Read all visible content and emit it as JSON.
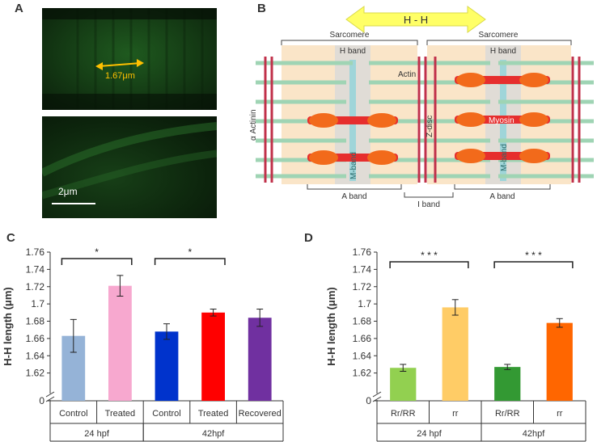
{
  "panels": {
    "a": {
      "letter": "A",
      "measure_label": "1.67μm",
      "scale_label": "2μm"
    },
    "b": {
      "letter": "B",
      "hh_label": "H - H",
      "sarcomere_left": "Sarcomere",
      "sarcomere_right": "Sarcomere",
      "h_band_left": "H band",
      "h_band_right": "H band",
      "actin": "Actin",
      "myosin": "Myosin",
      "alpha_actinin": "α Actinin",
      "z_disc": "Z-disc",
      "m_band_left": "M-band",
      "m_band_right": "M-band",
      "a_band_left": "A band",
      "a_band_right": "A band",
      "i_band": "I band"
    }
  },
  "colors": {
    "bar_c": [
      "#95b3d7",
      "#f7a8cf",
      "#0033cc",
      "#ff0000",
      "#7030a0"
    ],
    "bar_d": [
      "#92d050",
      "#ffcc66",
      "#339933",
      "#ff6600"
    ],
    "hh_arrow": "#ffff66",
    "measure_arrow": "#ffc000"
  },
  "chart_data": [
    {
      "panel": "C",
      "type": "bar",
      "ylabel": "H-H length (μm)",
      "ylim": [
        1.6,
        1.76
      ],
      "yticks": [
        "0",
        "1.62",
        "1.64",
        "1.66",
        "1.68",
        "1.7",
        "1.72",
        "1.74",
        "1.76"
      ],
      "axis_break": true,
      "categories": [
        "Control",
        "Treated",
        "Control",
        "Treated",
        "Recovered"
      ],
      "groups": [
        {
          "label": "24 hpf",
          "span": [
            0,
            1
          ]
        },
        {
          "label": "42hpf",
          "span": [
            2,
            4
          ]
        }
      ],
      "values": [
        1.663,
        1.721,
        1.668,
        1.69,
        1.684
      ],
      "errors": [
        0.019,
        0.012,
        0.009,
        0.004,
        0.01
      ],
      "significance": [
        {
          "from": 0,
          "to": 1,
          "label": "*"
        },
        {
          "from": 2,
          "to": 3,
          "label": "*"
        }
      ]
    },
    {
      "panel": "D",
      "type": "bar",
      "ylabel": "H-H length (μm)",
      "ylim": [
        1.6,
        1.76
      ],
      "yticks": [
        "0",
        "1.62",
        "1.64",
        "1.66",
        "1.68",
        "1.7",
        "1.72",
        "1.74",
        "1.76"
      ],
      "axis_break": true,
      "categories": [
        "Rr/RR",
        "rr",
        "Rr/RR",
        "rr"
      ],
      "groups": [
        {
          "label": "24 hpf",
          "span": [
            0,
            1
          ]
        },
        {
          "label": "42hpf",
          "span": [
            2,
            3
          ]
        }
      ],
      "values": [
        1.626,
        1.696,
        1.627,
        1.678
      ],
      "errors": [
        0.004,
        0.009,
        0.003,
        0.005
      ],
      "significance": [
        {
          "from": 0,
          "to": 1,
          "label": "* * *"
        },
        {
          "from": 2,
          "to": 3,
          "label": "* * *"
        }
      ]
    }
  ]
}
